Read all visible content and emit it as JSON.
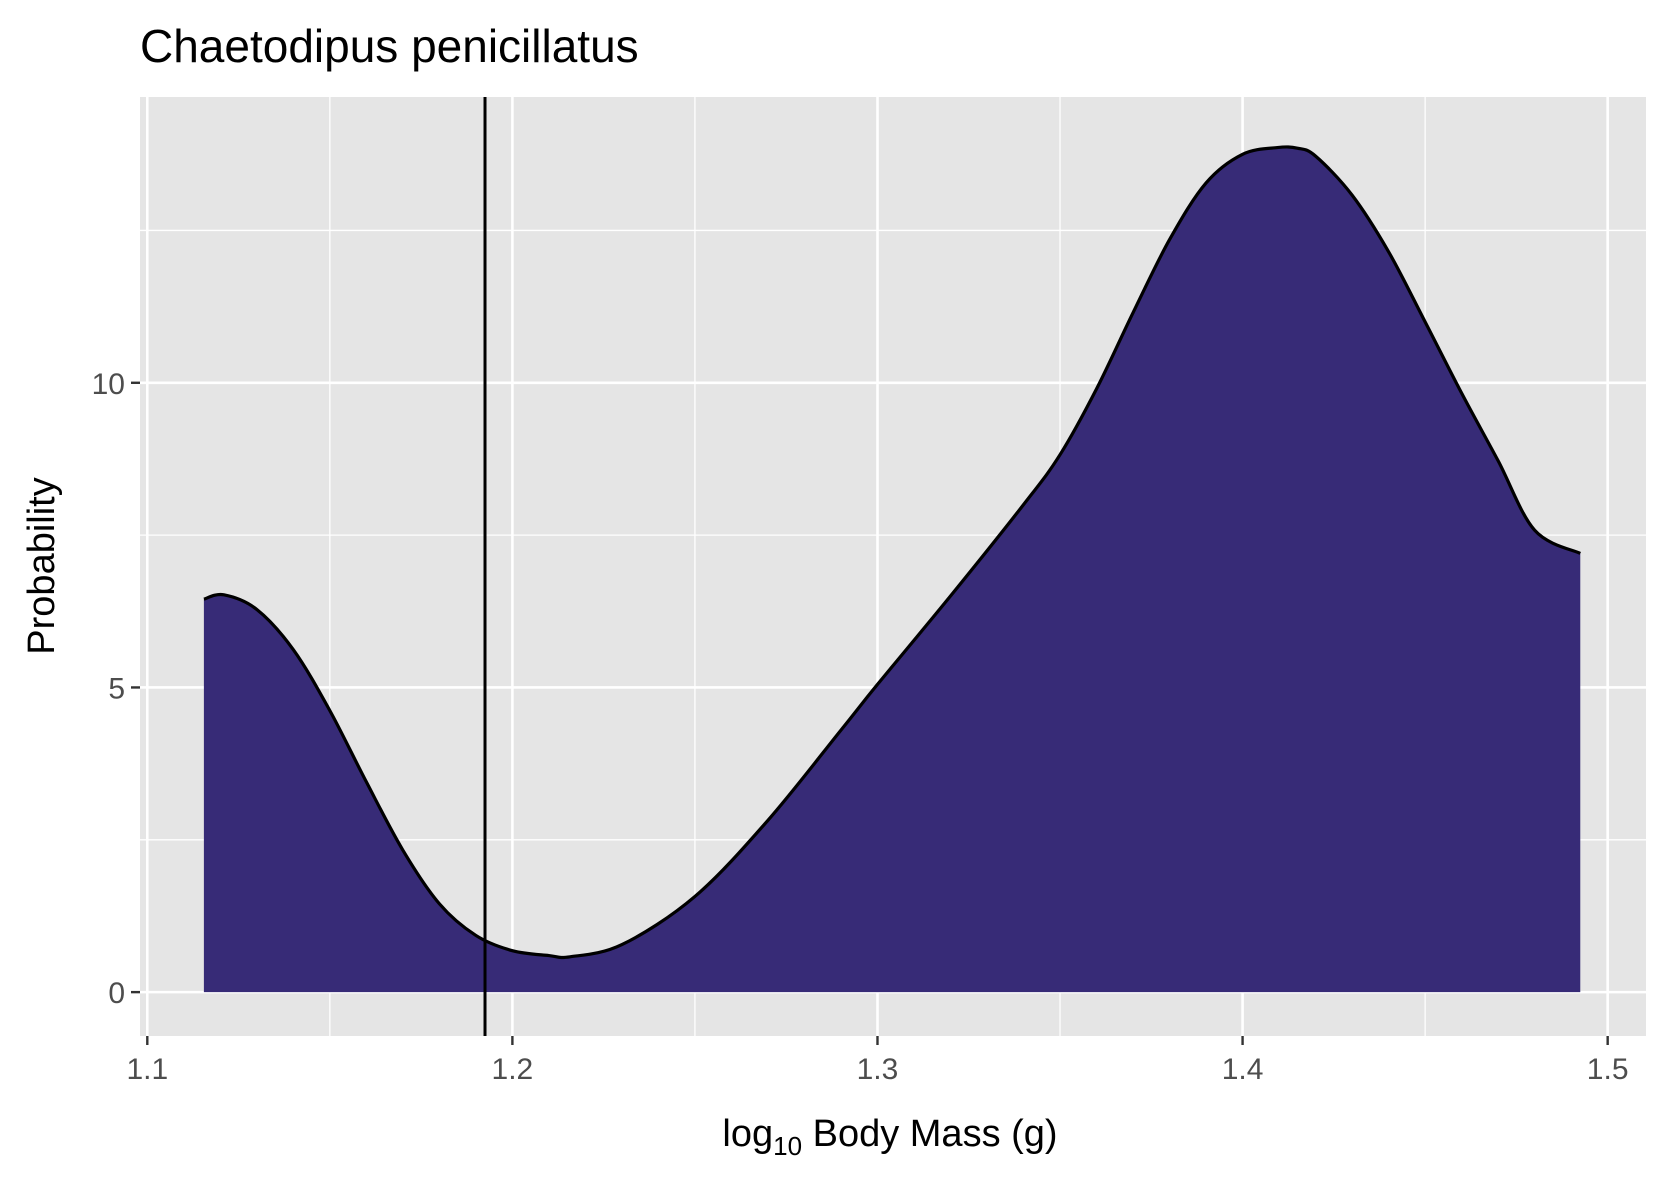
{
  "chart_data": {
    "type": "area",
    "title": "Chaetodipus penicillatus",
    "xlabel": {
      "prefix": "log",
      "subscript": "10",
      "suffix": " Body Mass (g)"
    },
    "ylabel": "Probability",
    "xlim": [
      1.098,
      1.5105
    ],
    "ylim": [
      -0.72,
      14.69
    ],
    "x_ticks": [
      1.1,
      1.2,
      1.3,
      1.4,
      1.5
    ],
    "x_tick_labels": [
      "1.1",
      "1.2",
      "1.3",
      "1.4",
      "1.5"
    ],
    "y_ticks": [
      0,
      5,
      10
    ],
    "y_tick_labels": [
      "0",
      "5",
      "10"
    ],
    "grid": true,
    "legend": "none",
    "vline": {
      "x": 1.1925
    },
    "series": [
      {
        "x": [
          1.1155,
          1.121,
          1.13,
          1.14,
          1.15,
          1.16,
          1.17,
          1.18,
          1.19,
          1.2,
          1.21,
          1.2158,
          1.23,
          1.25,
          1.27,
          1.29,
          1.3,
          1.32,
          1.34,
          1.35,
          1.36,
          1.37,
          1.38,
          1.39,
          1.4,
          1.4095,
          1.415,
          1.42,
          1.43,
          1.44,
          1.45,
          1.46,
          1.47,
          1.48,
          1.4925
        ],
        "values": [
          6.45,
          6.52,
          6.28,
          5.62,
          4.62,
          3.45,
          2.33,
          1.45,
          0.93,
          0.68,
          0.6,
          0.58,
          0.78,
          1.57,
          2.82,
          4.3,
          5.05,
          6.5,
          8.0,
          8.82,
          9.9,
          11.15,
          12.35,
          13.28,
          13.75,
          13.86,
          13.85,
          13.72,
          13.08,
          12.15,
          11.0,
          9.83,
          8.72,
          7.58,
          7.2
        ]
      }
    ],
    "colors": {
      "fill": "#372B77",
      "outline": "#000000",
      "panel": "#E5E5E5",
      "grid": "#FFFFFF",
      "vline": "#000000"
    }
  }
}
